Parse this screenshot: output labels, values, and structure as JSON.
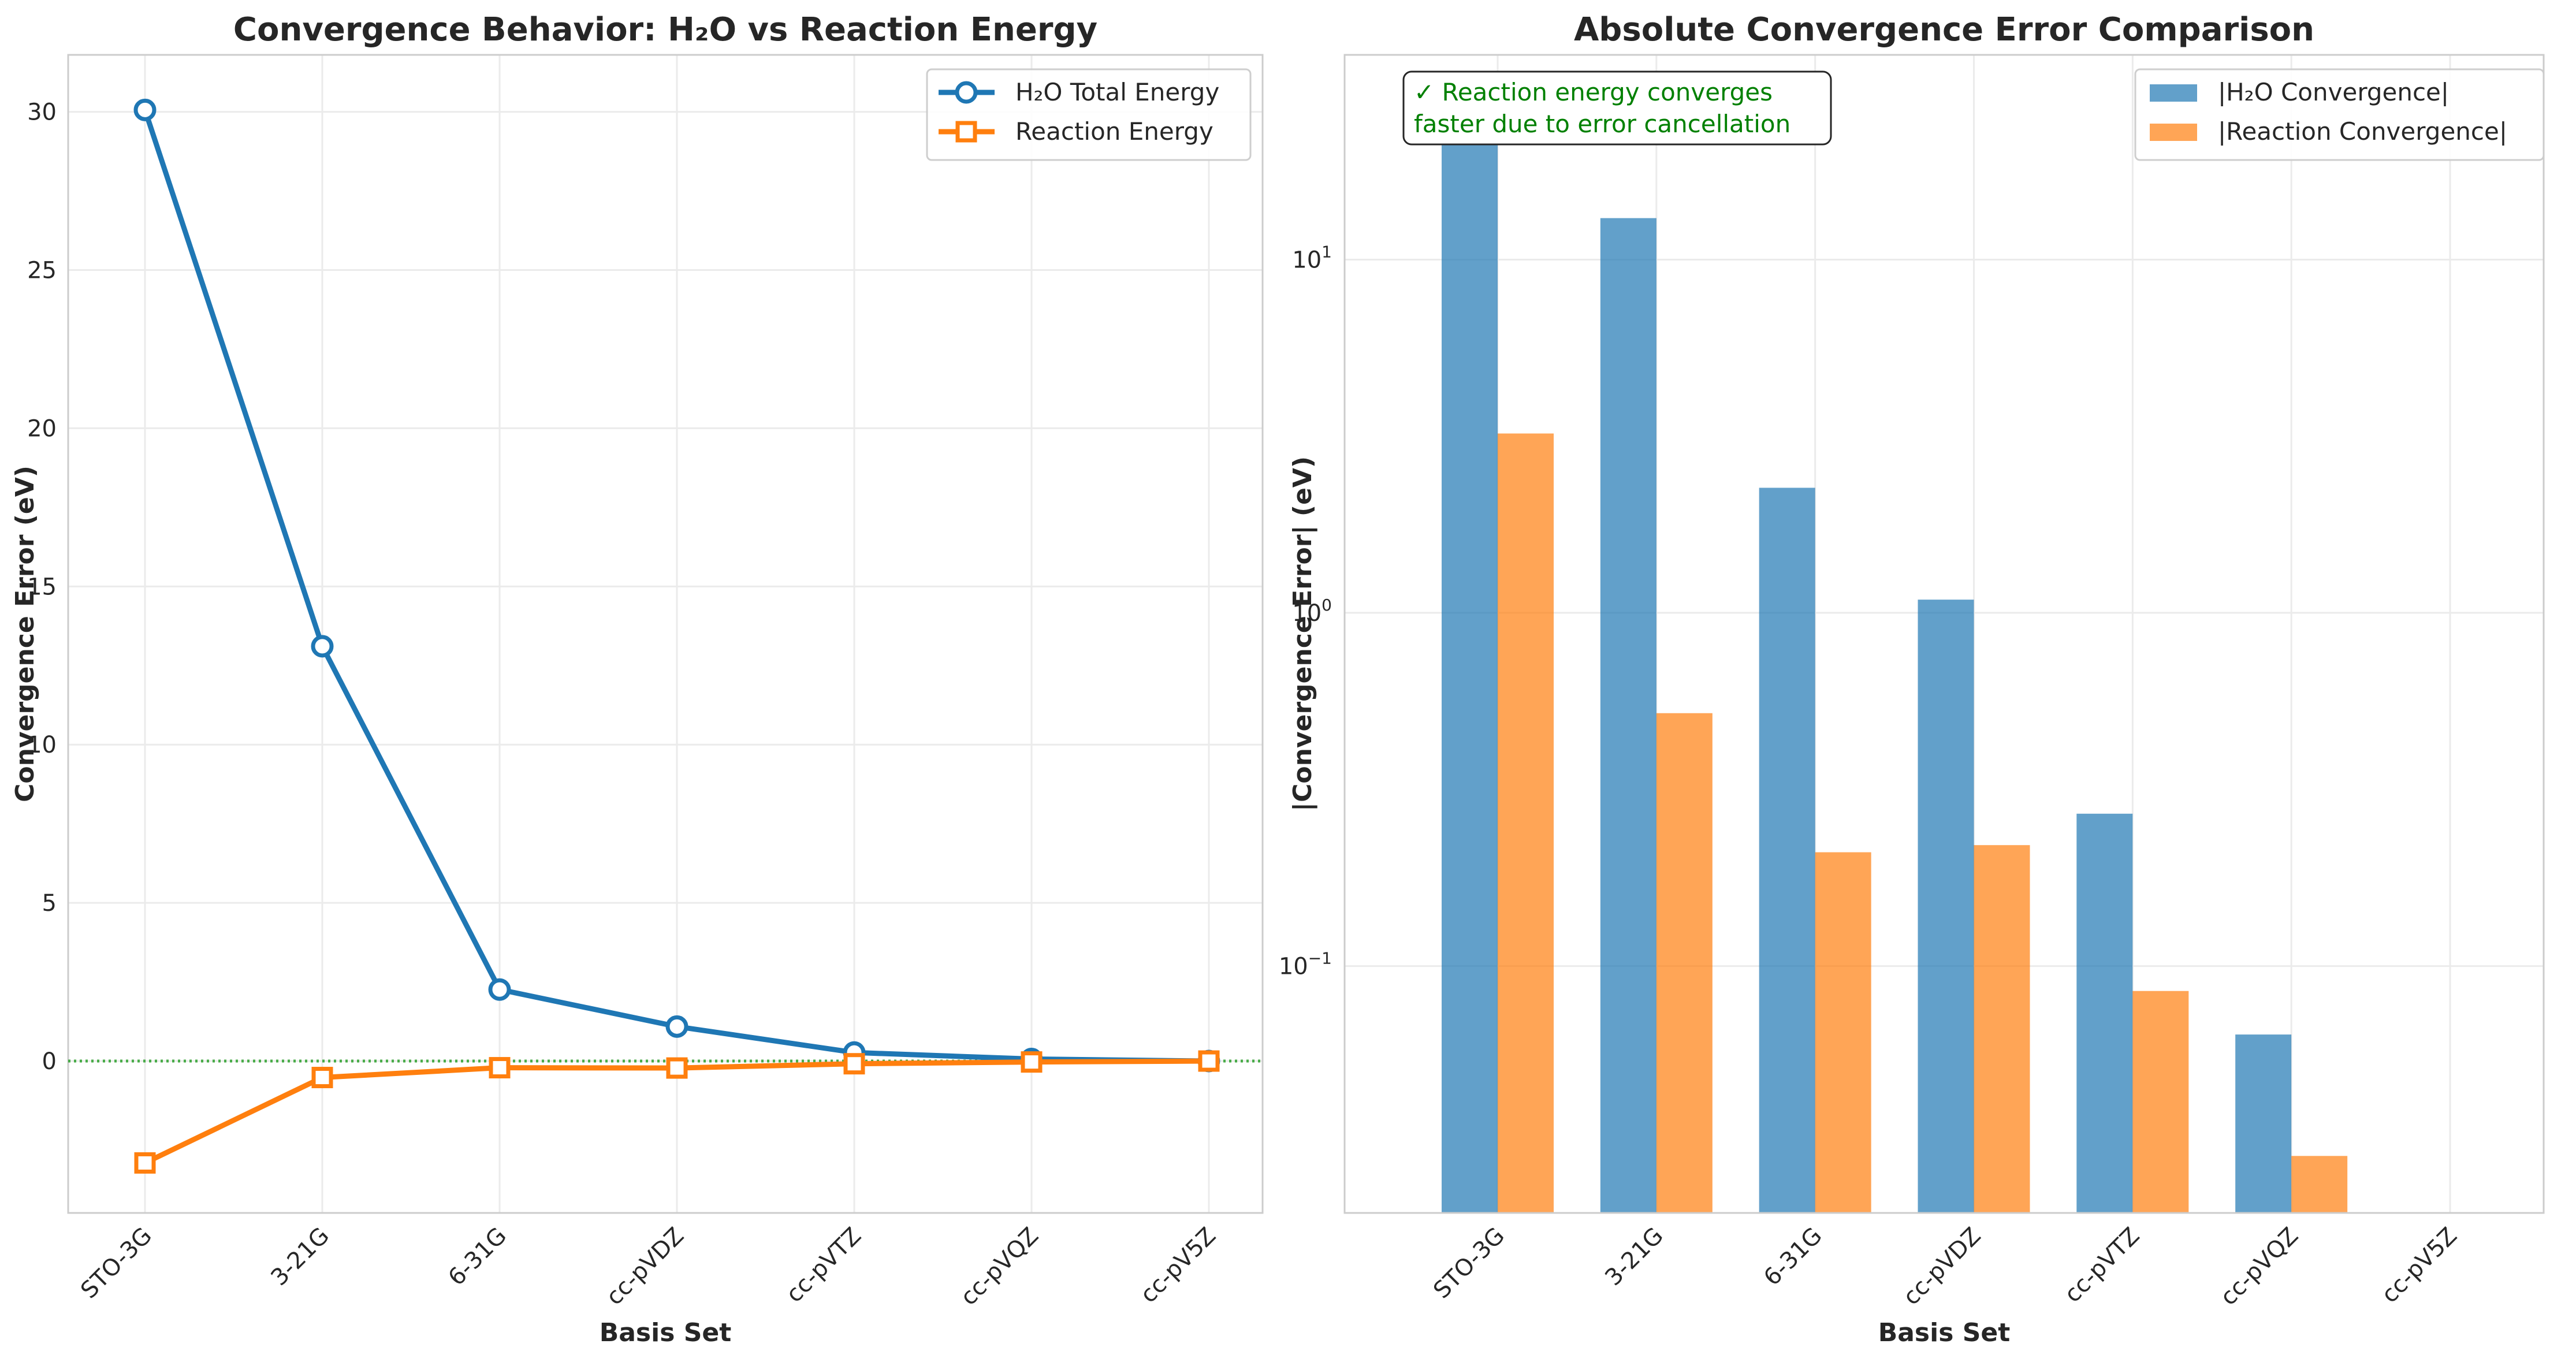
{
  "chart_data": [
    {
      "type": "line",
      "title": "Convergence Behavior: H₂O vs Reaction Energy",
      "xlabel": "Basis Set",
      "ylabel": "Convergence Error (eV)",
      "categories": [
        "STO-3G",
        "3-21G",
        "6-31G",
        "cc-pVDZ",
        "cc-pVTZ",
        "cc-pVQZ",
        "cc-pV5Z"
      ],
      "ylim": [
        -4.8,
        31.8
      ],
      "yticks": [
        0,
        5,
        10,
        15,
        20,
        25,
        30
      ],
      "grid": true,
      "reference_line": {
        "y": 0,
        "color": "#2ca02c",
        "style": "dotted"
      },
      "legend_position": "top-right",
      "series": [
        {
          "name": "H₂O Total Energy",
          "color": "#1f77b4",
          "marker": "circle",
          "values": [
            30.06,
            13.11,
            2.26,
            1.09,
            0.27,
            0.064,
            0.0
          ]
        },
        {
          "name": "Reaction Energy",
          "color": "#ff7f0e",
          "marker": "square",
          "values": [
            -3.22,
            -0.52,
            -0.21,
            -0.22,
            -0.085,
            -0.029,
            0.0
          ]
        }
      ]
    },
    {
      "type": "bar",
      "title": "Absolute Convergence Error Comparison",
      "xlabel": "Basis Set",
      "ylabel": "|Convergence Error| (eV)",
      "yscale": "log",
      "ylim": [
        0.02,
        38
      ],
      "yticks": [
        {
          "value": 0.1,
          "base": "10",
          "exp": "−1"
        },
        {
          "value": 1,
          "base": "10",
          "exp": "0"
        },
        {
          "value": 10,
          "base": "10",
          "exp": "1"
        }
      ],
      "categories": [
        "STO-3G",
        "3-21G",
        "6-31G",
        "cc-pVDZ",
        "cc-pVTZ",
        "cc-pVQZ",
        "cc-pV5Z"
      ],
      "grid": true,
      "legend_position": "top-right",
      "annotation": [
        "✓ Reaction energy converges",
        "faster due to error cancellation"
      ],
      "annotation_color": "#008000",
      "series": [
        {
          "name": "|H₂O Convergence|",
          "color": "#1f77b4",
          "values": [
            30.06,
            13.11,
            2.26,
            1.09,
            0.27,
            0.064,
            null
          ]
        },
        {
          "name": "|Reaction Convergence|",
          "color": "#ff7f0e",
          "values": [
            3.22,
            0.52,
            0.21,
            0.22,
            0.085,
            0.029,
            null
          ]
        }
      ]
    }
  ]
}
